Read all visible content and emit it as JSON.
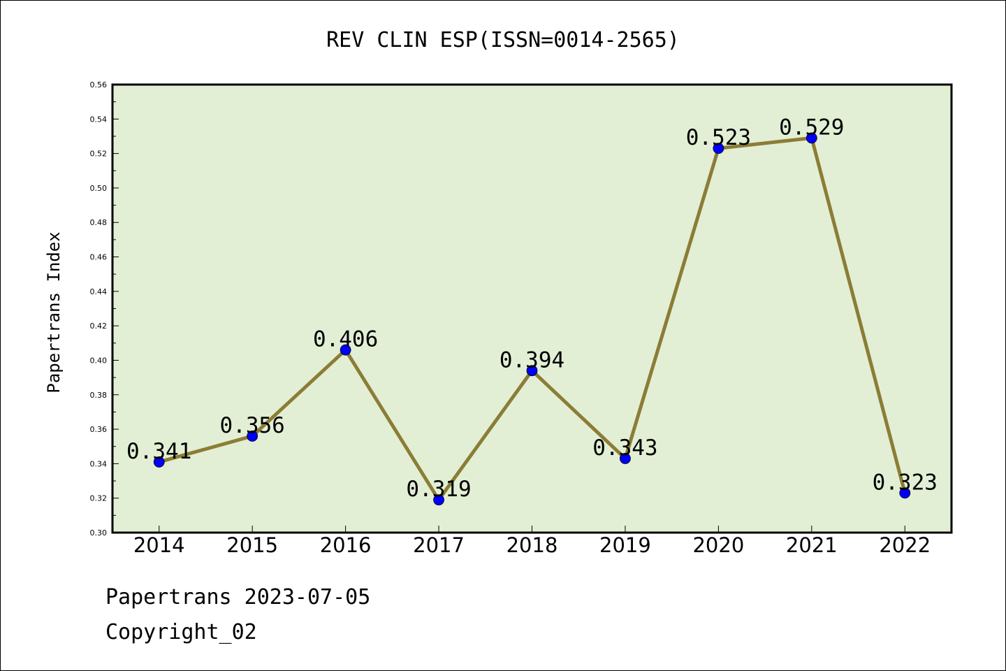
{
  "chart_data": {
    "type": "line",
    "title": "REV CLIN ESP(ISSN=0014-2565)",
    "ylabel": "Papertrans Index",
    "xlabel": "",
    "categories": [
      "2014",
      "2015",
      "2016",
      "2017",
      "2018",
      "2019",
      "2020",
      "2021",
      "2022"
    ],
    "values": [
      0.341,
      0.356,
      0.406,
      0.319,
      0.394,
      0.343,
      0.523,
      0.529,
      0.323
    ],
    "data_labels": [
      "0.341",
      "0.356",
      "0.406",
      "0.319",
      "0.394",
      "0.343",
      "0.523",
      "0.529",
      "0.323"
    ],
    "ylim": [
      0.3,
      0.56
    ],
    "yticks": [
      "0.30",
      "0.32",
      "0.34",
      "0.36",
      "0.38",
      "0.40",
      "0.42",
      "0.44",
      "0.46",
      "0.48",
      "0.50",
      "0.52",
      "0.54",
      "0.56"
    ],
    "grid": false,
    "legend": "none",
    "colors": {
      "line": "#8b7d36",
      "marker": "#0000ff",
      "plot_background": "#e2efd5"
    }
  },
  "footer": {
    "date_line": "Papertrans 2023-07-05",
    "copyright": "Copyright_02"
  }
}
